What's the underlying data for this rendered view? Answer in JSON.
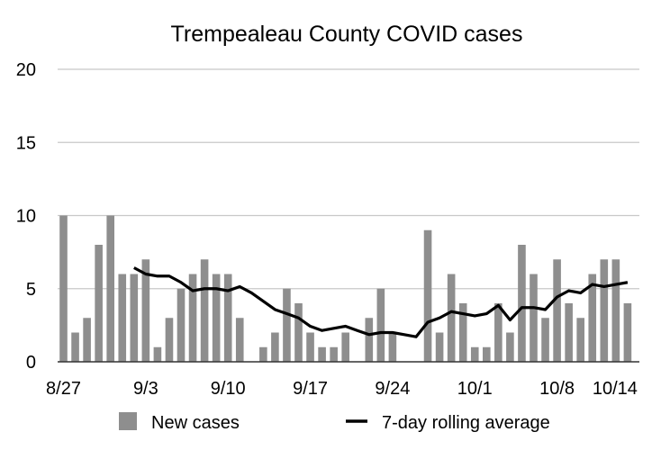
{
  "chart_data": {
    "type": "bar",
    "title": "Trempealeau County COVID cases",
    "xlabel": "",
    "ylabel": "",
    "ylim": [
      0,
      20
    ],
    "yticks": [
      "0",
      "5",
      "10",
      "15",
      "20"
    ],
    "xtick_labels": [
      {
        "label": "8/27",
        "index": 0
      },
      {
        "label": "9/3",
        "index": 7
      },
      {
        "label": "9/10",
        "index": 14
      },
      {
        "label": "9/17",
        "index": 21
      },
      {
        "label": "9/24",
        "index": 28
      },
      {
        "label": "10/1",
        "index": 35
      },
      {
        "label": "10/8",
        "index": 42
      },
      {
        "label": "10/14",
        "index": 48
      }
    ],
    "grid": true,
    "legend_position": "bottom",
    "categories": [
      "8/27",
      "8/28",
      "8/29",
      "8/30",
      "8/31",
      "9/1",
      "9/2",
      "9/3",
      "9/4",
      "9/5",
      "9/6",
      "9/7",
      "9/8",
      "9/9",
      "9/10",
      "9/11",
      "9/12",
      "9/13",
      "9/14",
      "9/15",
      "9/16",
      "9/17",
      "9/18",
      "9/19",
      "9/20",
      "9/21",
      "9/22",
      "9/23",
      "9/24",
      "9/25",
      "9/26",
      "9/27",
      "9/28",
      "9/29",
      "9/30",
      "10/1",
      "10/2",
      "10/3",
      "10/4",
      "10/5",
      "10/6",
      "10/7",
      "10/8",
      "10/9",
      "10/10",
      "10/11",
      "10/12",
      "10/13",
      "10/14"
    ],
    "series": [
      {
        "name": "New cases",
        "type": "bar",
        "color": "#8e8e8e",
        "values": [
          10,
          2,
          3,
          8,
          10,
          6,
          6,
          7,
          1,
          3,
          5,
          6,
          7,
          6,
          6,
          3,
          0,
          1,
          2,
          5,
          4,
          2,
          1,
          1,
          2,
          0,
          3,
          5,
          2,
          0,
          0,
          9,
          2,
          6,
          4,
          1,
          1,
          4,
          2,
          8,
          6,
          3,
          7,
          4,
          3,
          6,
          7,
          7,
          4
        ]
      },
      {
        "name": "7-day rolling average",
        "type": "line",
        "color": "#000000",
        "values": [
          null,
          null,
          null,
          null,
          null,
          null,
          6.43,
          6.0,
          5.86,
          5.86,
          5.43,
          4.86,
          5.0,
          5.0,
          4.86,
          5.14,
          4.71,
          4.14,
          3.57,
          3.29,
          3.0,
          2.43,
          2.14,
          2.29,
          2.43,
          2.14,
          1.86,
          2.0,
          2.0,
          1.86,
          1.71,
          2.71,
          3.0,
          3.43,
          3.29,
          3.14,
          3.29,
          3.86,
          2.86,
          3.71,
          3.71,
          3.57,
          4.43,
          4.86,
          4.71,
          5.29,
          5.14,
          5.29,
          5.43
        ]
      }
    ]
  }
}
